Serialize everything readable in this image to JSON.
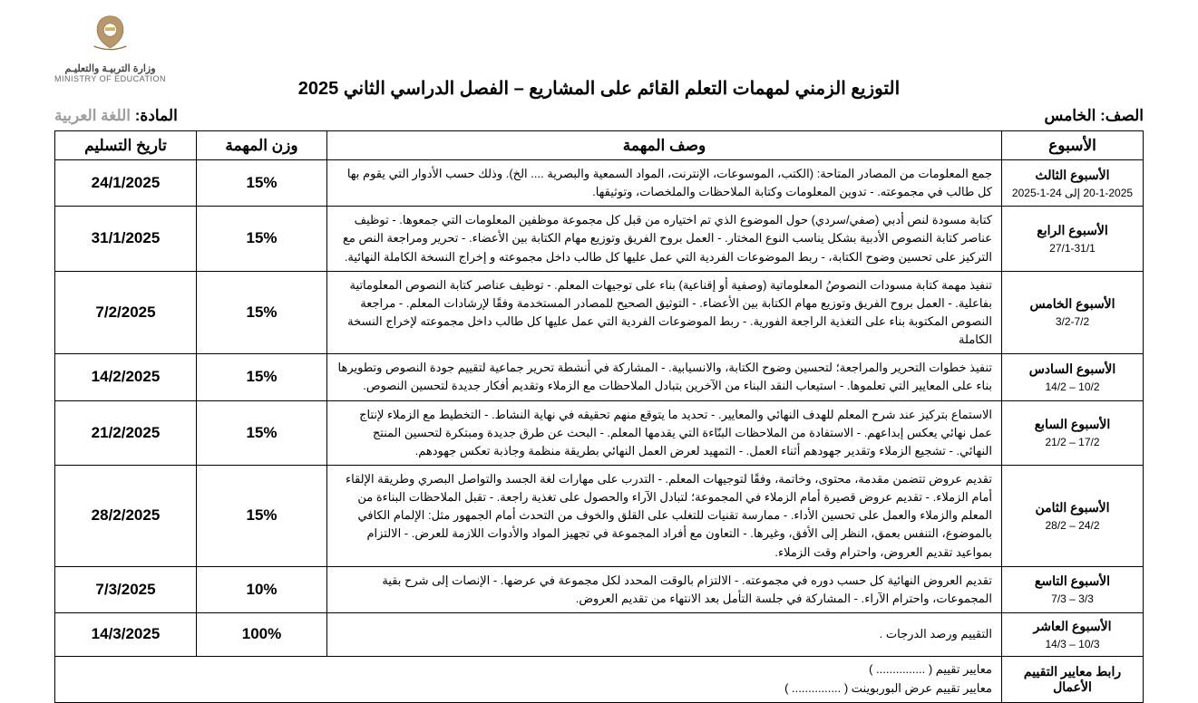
{
  "logo": {
    "ministry_ar": "وزارة التربيـة والتعليـم",
    "ministry_en": "MINISTRY OF EDUCATION"
  },
  "title": "التوزيع الزمني لمهمات التعلم القائم على المشاريع – الفصل الدراسي الثاني 2025",
  "grade_label": "الصف:",
  "grade_value": "الخامس",
  "subject_label": "المادة:",
  "subject_value": "اللغة العربية",
  "headers": {
    "week": "الأسبوع",
    "desc": "وصف المهمة",
    "weight": "وزن المهمة",
    "date": "تاريخ التسليم"
  },
  "rows": [
    {
      "week_name": "الأسبوع الثالث",
      "week_range": "20-1-2025 إلى 24-1-2025",
      "desc": "جمع المعلومات من المصادر المتاحة: (الكتب، الموسوعات، الإنترنت، المواد السمعية والبصرية .... الخ). وذلك حسب الأدوار التي يقوم بها كل طالب في مجموعته. - تدوين المعلومات وكتابة الملاحظات والملخصات، وتوثيقها.",
      "weight": "15%",
      "date": "24/1/2025"
    },
    {
      "week_name": "الأسبوع الرابع",
      "week_range": "27/1-31/1",
      "desc": "كتابة مسودة لنص أدبي (صفي/سردي) حول الموضوع الذي تم اختياره من قبل كل مجموعة موظفين المعلومات التي جمعوها. - توظيف عناصر كتابة النصوص الأدبية بشكل يناسب النوع المختار. - العمل بروح الفريق وتوزيع مهام الكتابة بين الأعضاء. - تحرير ومراجعة النص مع التركيز على تحسين وضوح الكتابة، - ربط الموضوعات الفردية التي عمل عليها كل طالب داخل مجموعته و إخراج النسخة الكاملة النهائية.",
      "weight": "15%",
      "date": "31/1/2025"
    },
    {
      "week_name": "الأسبوع الخامس",
      "week_range": "3/2-7/2",
      "desc": "تنفيذ مهمة كتابة مسودات النصوصُ المعلوماتية (وصفية أو إقناعية) بناء على توجيهات المعلم. - توظيف عناصر كتابة النصوص المعلوماتية بفاعلية. - العمل بروح الفريق وتوزيع مهام الكتابة بين الأعضاء. - التوثيق الصحيح للمصادر المستخدمة وفقًا لإرشادات المعلم. - مراجعة النصوص المكتوبة بناء على التغذية الراجعة الفورية. - ربط الموضوعات الفردية التي عمل عليها كل طالب داخل مجموعته لإخراج النسخة الكاملة",
      "weight": "15%",
      "date": "7/2/2025"
    },
    {
      "week_name": "الأسبوع السادس",
      "week_range": "10/2 – 14/2",
      "desc": "تنفيذ خطوات التحرير والمراجعة؛ لتحسين وضوح الكتابة، والانسيابية. - المشاركة في أنشطة تحرير جماعية لتقييم جودة النصوص وتطويرها بناء على المعايير التي تعلموها. - استيعاب النقد البناء من الآخرين بتبادل الملاحظات مع الزملاء وتقديم أفكار جديدة لتحسين النصوص.",
      "weight": "15%",
      "date": "14/2/2025"
    },
    {
      "week_name": "الأسبوع السابع",
      "week_range": "17/2 – 21/2",
      "desc": "الاستماع بتركيز عند شرح المعلم للهدف النهائي والمعايير. - تحديد ما يتوقع منهم تحقيقه في نهاية النشاط. - التخطيط مع الزملاء لإنتاج عمل نهائي يعكس إبداعهم. - الاستفادة من الملاحظات البنّاءة التي يقدمها المعلم. - البحث عن طرق جديدة ومبتكرة لتحسين المنتج النهائي. - تشجيع الزملاء وتقدير جهودهم أثناء العمل. - التمهيد لعرض العمل النهائي بطريقة منظمة وجاذبة تعكس جهودهم.",
      "weight": "15%",
      "date": "21/2/2025"
    },
    {
      "week_name": "الأسبوع الثامن",
      "week_range": "24/2 – 28/2",
      "desc": "تقديم عروض تتضمن مقدمة، محتوى، وخاتمة، وفقًا لتوجيهات المعلم. - التدرب على مهارات لغة الجسد والتواصل البصري وطريقة الإلقاء أمام الزملاء. - تقديم عروض قصيرة أمام الزملاء في المجموعة؛ لتبادل الآراء والحصول على تغذية راجعة. - تقبل الملاحظات البناءة من المعلم والزملاء والعمل على تحسين الأداء. - ممارسة تقنيات للتغلب على القلق والخوف من التحدث أمام الجمهور مثل: الإلمام الكافي بالموضوع، التنفس بعمق، النظر إلى الأفق، وغيرها. - التعاون مع أفراد المجموعة في تجهيز المواد والأدوات اللازمة للعرض. - الالتزام بمواعيد تقديم العروض، واحترام وقت الزملاء.",
      "weight": "15%",
      "date": "28/2/2025"
    },
    {
      "week_name": "الأسبوع التاسع",
      "week_range": "3/3 – 7/3",
      "desc": "تقديم العروض النهائية كل حسب دوره في مجموعته. - الالتزام بالوقت المحدد لكل مجموعة في عرضها. - الإنصات إلى شرح بقية المجموعات، واحترام الآراء. - المشاركة في جلسة التأمل بعد الانتهاء من تقديم العروض.",
      "weight": "10%",
      "date": "7/3/2025"
    },
    {
      "week_name": "الأسبوع العاشر",
      "week_range": "10/3 – 14/3",
      "desc": "التقييم ورصد الدرجات .",
      "weight": "100%",
      "date": "14/3/2025"
    }
  ],
  "footer": {
    "label": "رابط معايير التقييم الأعمال",
    "line1": "معايير تقييم ( ............... )",
    "line2": "معايير تقييم عرض البوربوينت ( ............... )"
  }
}
